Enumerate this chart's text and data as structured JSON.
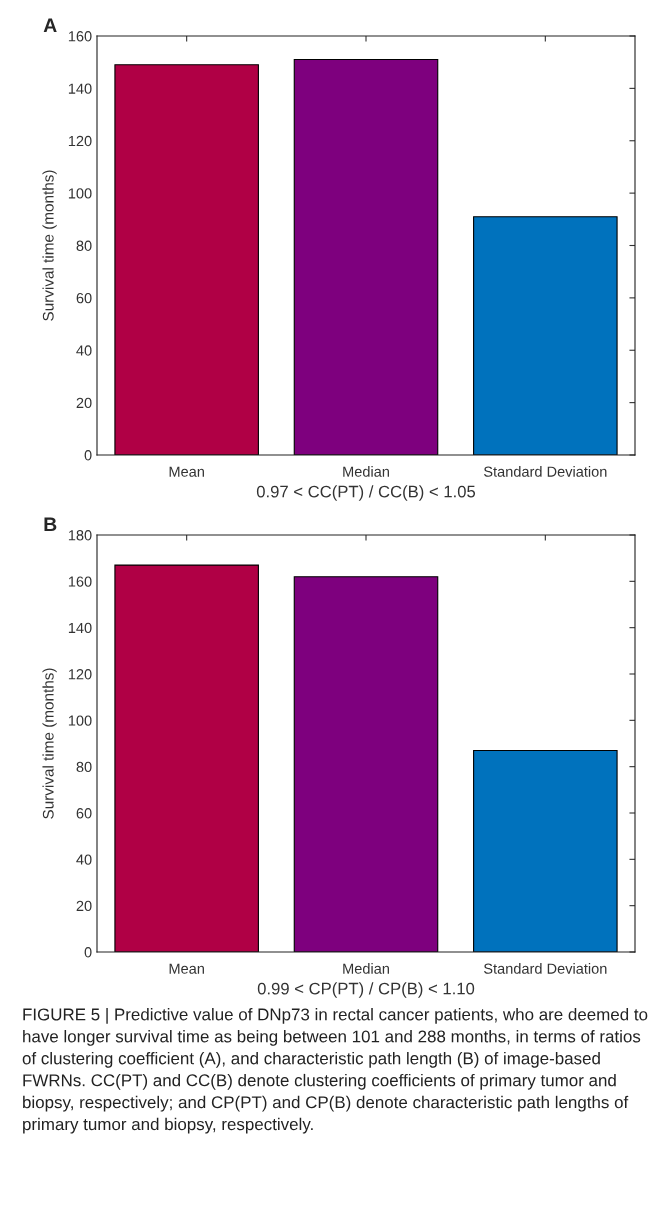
{
  "chart_data": [
    {
      "type": "bar",
      "title": "A",
      "categories": [
        "Mean",
        "Median",
        "Standard Deviation"
      ],
      "values": [
        149,
        151,
        91
      ],
      "colors": [
        "#b00045",
        "#7e007e",
        "#0072bd"
      ],
      "xlabel": "0.97 < CC(PT) / CC(B) < 1.05",
      "ylabel": "Survival time (months)",
      "ylim": [
        0,
        160
      ],
      "yticks": [
        0,
        20,
        40,
        60,
        80,
        100,
        120,
        140,
        160
      ],
      "grid": false
    },
    {
      "type": "bar",
      "title": "B",
      "categories": [
        "Mean",
        "Median",
        "Standard Deviation"
      ],
      "values": [
        167,
        162,
        87
      ],
      "colors": [
        "#b00045",
        "#7e007e",
        "#0072bd"
      ],
      "xlabel": "0.99 < CP(PT) / CP(B) < 1.10",
      "ylabel": "Survival time (months)",
      "ylim": [
        0,
        180
      ],
      "yticks": [
        0,
        20,
        40,
        60,
        80,
        100,
        120,
        140,
        160,
        180
      ],
      "grid": false,
      "annotations": [
        "FIGURE 5 | Predictive value of DNp73 in rectal cancer patients, who are deemed to have longer survival time as being between 101 and 288 months, in terms of ratios of clustering coefficient (A), and characteristic path length (B) of image-based FWRNs. CC(PT) and CC(B) denote clustering coefficients of primary tumor and biopsy, respectively; and CP(PT) and CP(B) denote characteristic path lengths of primary tumor and biopsy, respectively."
      ]
    }
  ]
}
